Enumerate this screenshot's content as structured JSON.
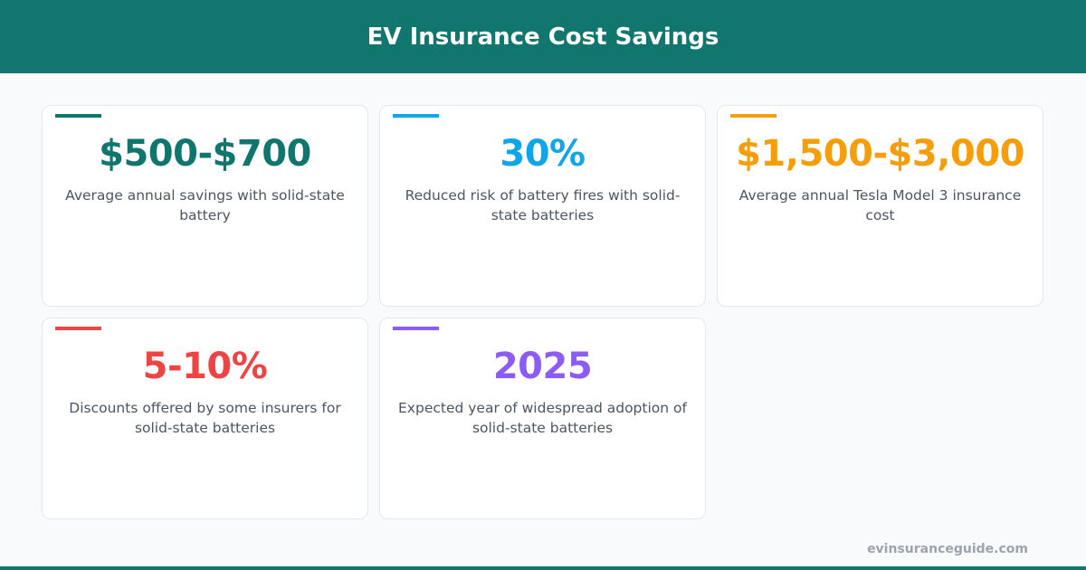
{
  "header": {
    "title": "EV Insurance Cost Savings"
  },
  "cards": [
    {
      "value": "$500-$700",
      "label": "Average annual savings with solid-state battery",
      "color": "#0f766e"
    },
    {
      "value": "30%",
      "label": "Reduced risk of battery fires with solid-state batteries",
      "color": "#0ea5e9"
    },
    {
      "value": "$1,500-$3,000",
      "label": "Average annual Tesla Model 3 insurance cost",
      "color": "#f59e0b"
    },
    {
      "value": "5-10%",
      "label": "Discounts offered by some insurers for solid-state batteries",
      "color": "#ef4444"
    },
    {
      "value": "2025",
      "label": "Expected year of widespread adoption of solid-state batteries",
      "color": "#8b5cf6"
    }
  ],
  "footer": {
    "source": "evinsuranceguide.com"
  }
}
